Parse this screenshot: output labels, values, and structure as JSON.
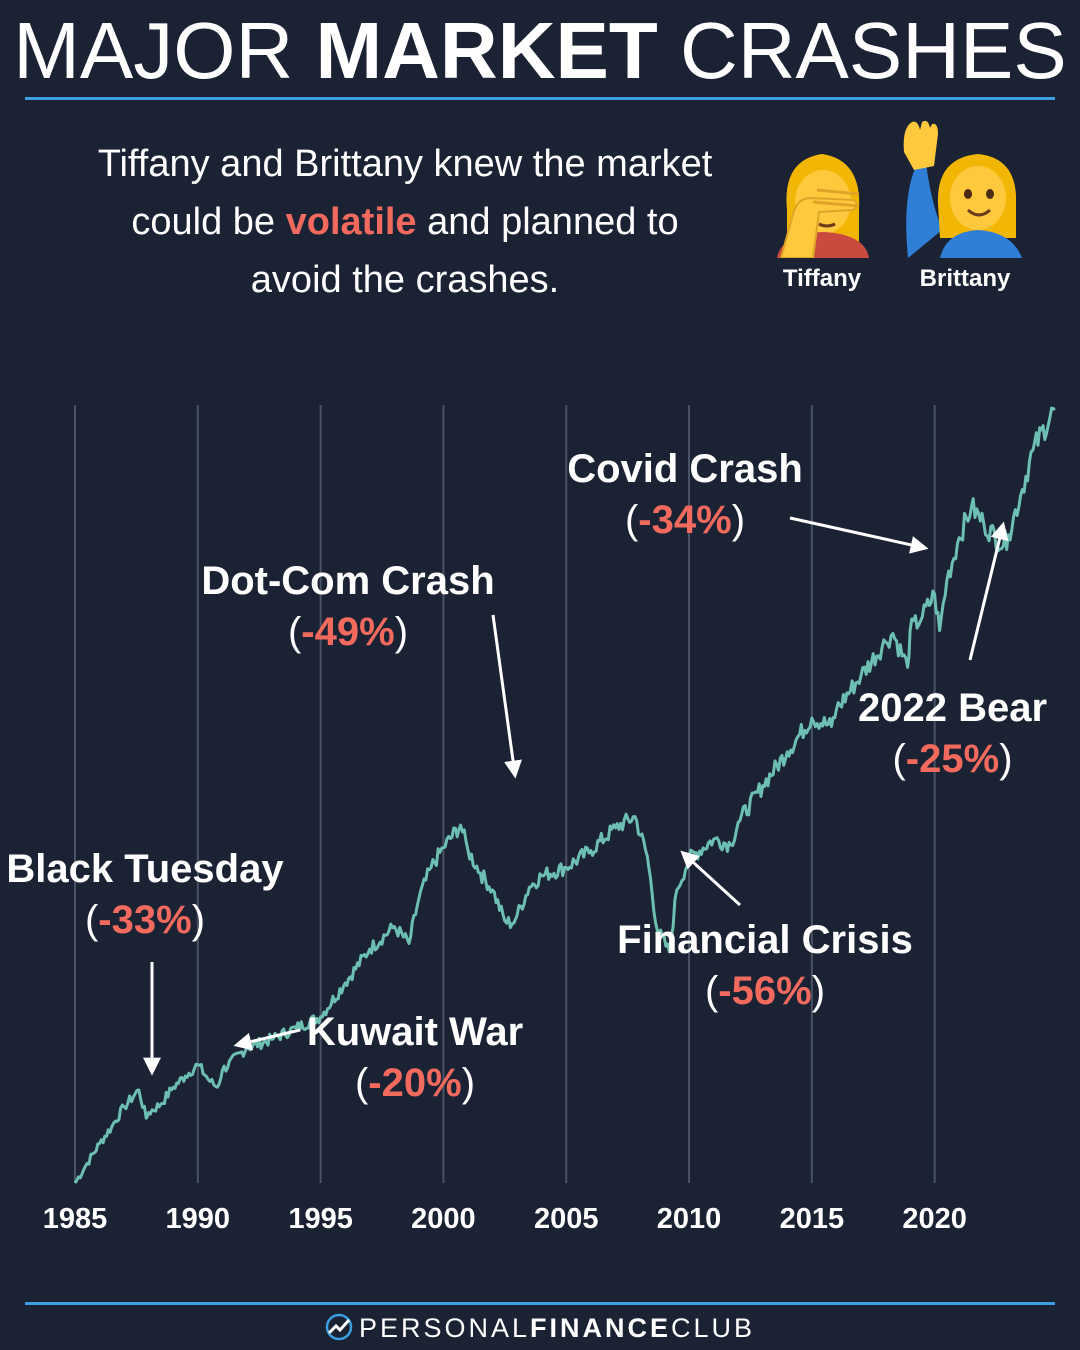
{
  "header": {
    "title_light_1": "MAJOR",
    "title_bold": "MARKET",
    "title_light_2": "CRASHES"
  },
  "intro": {
    "part1": "Tiffany and Brittany knew the market could be ",
    "highlight": "volatile",
    "part2": " and planned to avoid the crashes."
  },
  "personas": [
    {
      "name": "Tiffany",
      "icon": "facepalm-woman-icon"
    },
    {
      "name": "Brittany",
      "icon": "raising-hand-woman-icon"
    }
  ],
  "chart_data": {
    "type": "line",
    "x_tick_labels": [
      "1985",
      "1990",
      "1995",
      "2000",
      "2005",
      "2010",
      "2015",
      "2020"
    ],
    "xlim": [
      1985,
      2024.9
    ],
    "grid": "vertical",
    "line_color": "#6dbfb2",
    "accent_color": "#f26a5e",
    "series": [
      {
        "x": [
          1985.0,
          1985.5,
          1986.0,
          1986.5,
          1987.0,
          1987.6,
          1987.9,
          1988.0,
          1988.5,
          1989.0,
          1989.5,
          1990.0,
          1990.5,
          1990.8,
          1991.0,
          1992.0,
          1993.0,
          1994.0,
          1995.0,
          1996.0,
          1997.0,
          1998.0,
          1998.6,
          1999.0,
          1999.5,
          2000.0,
          2000.7,
          2001.0,
          2001.5,
          2002.0,
          2002.5,
          2002.8,
          2003.0,
          2003.5,
          2004.0,
          2005.0,
          2006.0,
          2007.0,
          2007.8,
          2008.3,
          2008.7,
          2009.2,
          2009.5,
          2010.0,
          2011.0,
          2011.7,
          2012.0,
          2013.0,
          2014.0,
          2015.0,
          2015.8,
          2016.0,
          2017.0,
          2018.0,
          2018.3,
          2018.9,
          2019.0,
          2019.5,
          2020.0,
          2020.2,
          2020.5,
          2021.0,
          2021.5,
          2022.0,
          2022.8,
          2023.0,
          2023.5,
          2024.0,
          2024.9
        ],
        "y": [
          0,
          7,
          14,
          20,
          27,
          33,
          23,
          25,
          28,
          34,
          38,
          42,
          36,
          34,
          40,
          48,
          51,
          55,
          59,
          71,
          83,
          91,
          85,
          101,
          112,
          119,
          127,
          118,
          110,
          104,
          93,
          92,
          95,
          105,
          109,
          112,
          118,
          126,
          130,
          116,
          90,
          82,
          104,
          115,
          122,
          120,
          128,
          141,
          153,
          165,
          162,
          168,
          180,
          192,
          195,
          183,
          196,
          201,
          209,
          196,
          214,
          229,
          240,
          234,
          226,
          230,
          244,
          260,
          275
        ]
      }
    ],
    "annotations": [
      {
        "label": "Black Tuesday",
        "change": "-33%"
      },
      {
        "label": "Kuwait War",
        "change": "-20%"
      },
      {
        "label": "Dot-Com Crash",
        "change": "-49%"
      },
      {
        "label": "Financial Crisis",
        "change": "-56%"
      },
      {
        "label": "Covid Crash",
        "change": "-34%"
      },
      {
        "label": "2022 Bear",
        "change": "-25%"
      }
    ]
  },
  "footer": {
    "brand_light_1": "PERSONAL",
    "brand_bold": "FINANCE",
    "brand_light_2": "CLUB",
    "logo_icon": "trend-up-logo-icon"
  }
}
